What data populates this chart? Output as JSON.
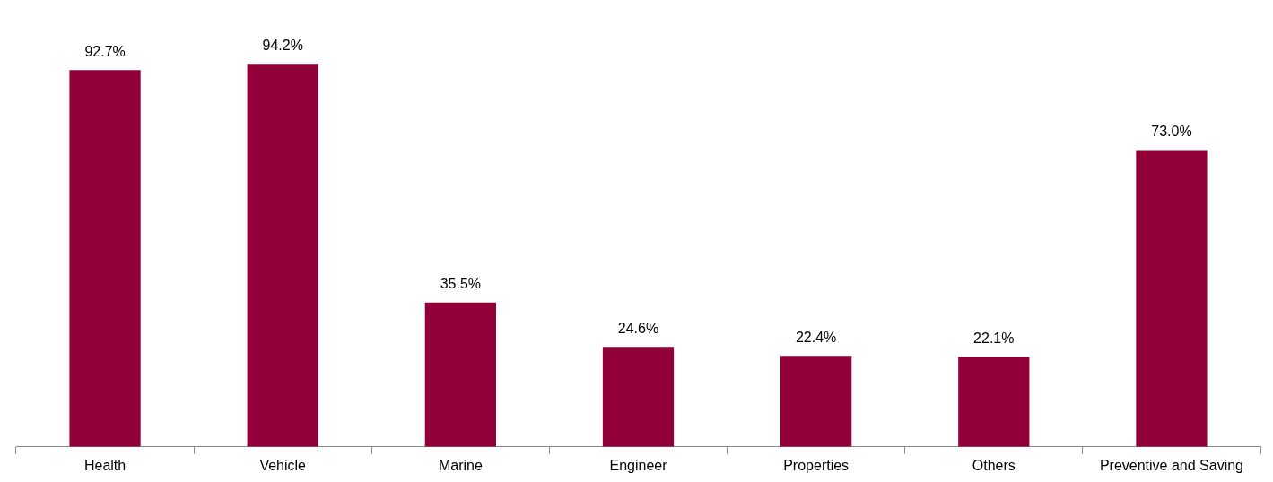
{
  "chart_data": {
    "type": "bar",
    "categories": [
      "Health",
      "Vehicle",
      "Marine",
      "Engineer",
      "Properties",
      "Others",
      "Preventive and Saving"
    ],
    "values": [
      92.7,
      94.2,
      35.5,
      24.6,
      22.4,
      22.1,
      73.0
    ],
    "value_labels": [
      "92.7%",
      "94.2%",
      "35.5%",
      "24.6%",
      "22.4%",
      "22.1%",
      "73.0%"
    ],
    "color": "#92003a"
  }
}
